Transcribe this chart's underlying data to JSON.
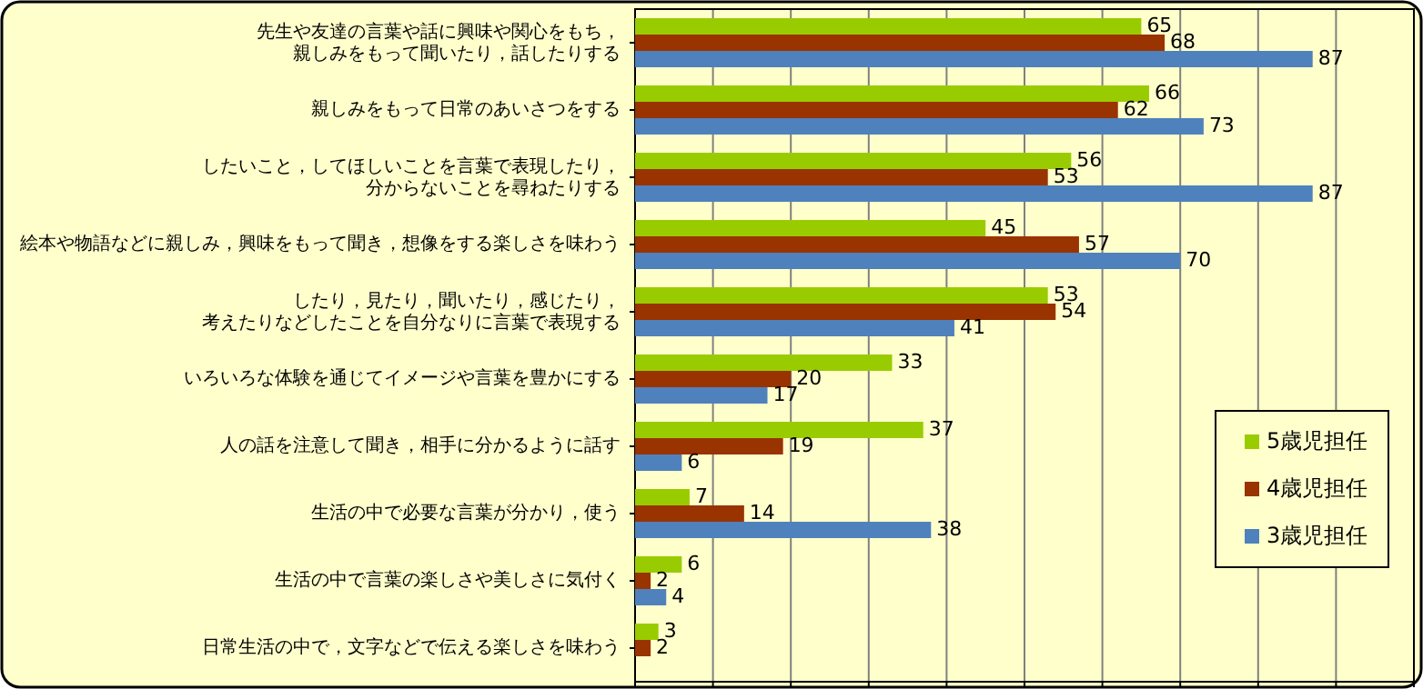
{
  "chart_data": {
    "type": "bar",
    "orientation": "horizontal",
    "categories": [
      "先生や友達の言葉や話に興味や関心をもち，親しみをもって聞いたり，話したりする",
      "親しみをもって日常のあいさつをする",
      "したいこと，してほしいことを言葉で表現したり，分からないことを尋ねたりする",
      "絵本や物語などに親しみ，興味をもって聞き，想像をする楽しさを味わう",
      "したり，見たり，聞いたり，感じたり，考えたりなどしたことを自分なりに言葉で表現する",
      "いろいろな体験を通じてイメージや言葉を豊かにする",
      "人の話を注意して聞き，相手に分かるように話す",
      "生活の中で必要な言葉が分かり，使う",
      "生活の中で言葉の楽しさや美しさに気付く",
      "日常生活の中で，文字などで伝える楽しさを味わう"
    ],
    "series": [
      {
        "name": "5歳児担任",
        "color": "#99cc00",
        "values": [
          65,
          66,
          56,
          45,
          53,
          33,
          37,
          7,
          6,
          3
        ]
      },
      {
        "name": "4歳児担任",
        "color": "#993300",
        "values": [
          68,
          62,
          53,
          57,
          54,
          20,
          19,
          14,
          2,
          2
        ]
      },
      {
        "name": "3歳児担任",
        "color": "#4f81bd",
        "values": [
          87,
          73,
          87,
          70,
          41,
          17,
          6,
          38,
          4,
          null
        ]
      }
    ],
    "xlim": [
      0,
      100
    ],
    "xticks": [
      {
        "value": 0,
        "label": null
      },
      {
        "value": 10,
        "label": null
      },
      {
        "value": 20,
        "label": null
      },
      {
        "value": 30,
        "label": null
      },
      {
        "value": 40,
        "label": null
      },
      {
        "value": 50,
        "label": null
      },
      {
        "value": 60,
        "label": null
      },
      {
        "value": 70,
        "label": null
      },
      {
        "value": 80,
        "label": null
      },
      {
        "value": 90,
        "label": null
      },
      {
        "value": 100,
        "label": null
      }
    ],
    "grid": "x",
    "legend": "right",
    "data_labels": true
  }
}
